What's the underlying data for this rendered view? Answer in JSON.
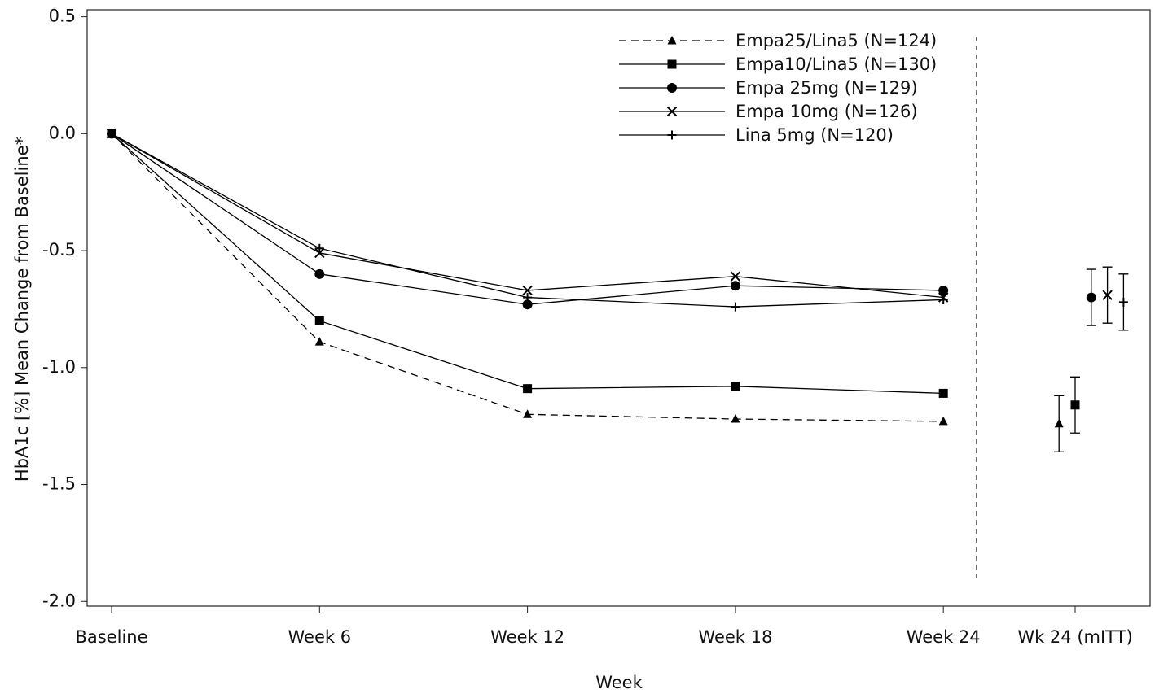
{
  "chart_data": {
    "type": "line",
    "x_label": "Week",
    "y_label": "HbA1c [%] Mean Change from Baseline*",
    "categories": [
      "Baseline",
      "Week 6",
      "Week 12",
      "Week 18",
      "Week 24"
    ],
    "mitt_category": "Wk 24 (mITT)",
    "ylim": [
      -2.02,
      0.53
    ],
    "yticks": [
      0.5,
      {
        "value": 0,
        "label": "0.0"
      },
      -0.5,
      {
        "value": -1,
        "label": "-1.0"
      },
      -1.5,
      {
        "value": -2,
        "label": "-2.0"
      }
    ],
    "series": [
      {
        "name": "Empa25/Lina5 (N=124)",
        "color": "#000000",
        "marker": "triangle",
        "line_style": "dashed",
        "values": [
          0,
          -0.89,
          -1.2,
          -1.22,
          -1.23
        ],
        "mitt_value": -1.24,
        "mitt_error": 0.12
      },
      {
        "name": "Empa10/Lina5 (N=130)",
        "color": "#000000",
        "marker": "square",
        "line_style": "solid",
        "values": [
          0,
          -0.8,
          -1.09,
          -1.08,
          -1.11
        ],
        "mitt_value": -1.16,
        "mitt_error": 0.12
      },
      {
        "name": "Empa 25mg (N=129)",
        "color": "#000000",
        "marker": "circle",
        "line_style": "solid",
        "values": [
          0,
          -0.6,
          -0.73,
          -0.65,
          -0.67
        ],
        "mitt_value": -0.7,
        "mitt_error": 0.12
      },
      {
        "name": "Empa 10mg (N=126)",
        "color": "#000000",
        "marker": "x",
        "line_style": "solid",
        "values": [
          0,
          -0.51,
          -0.67,
          -0.61,
          -0.7
        ],
        "mitt_value": -0.69,
        "mitt_error": 0.12
      },
      {
        "name": "Lina 5mg (N=120)",
        "color": "#000000",
        "marker": "plus",
        "line_style": "solid",
        "values": [
          0,
          -0.49,
          -0.7,
          -0.74,
          -0.71
        ],
        "mitt_value": -0.72,
        "mitt_error": 0.12
      }
    ]
  }
}
